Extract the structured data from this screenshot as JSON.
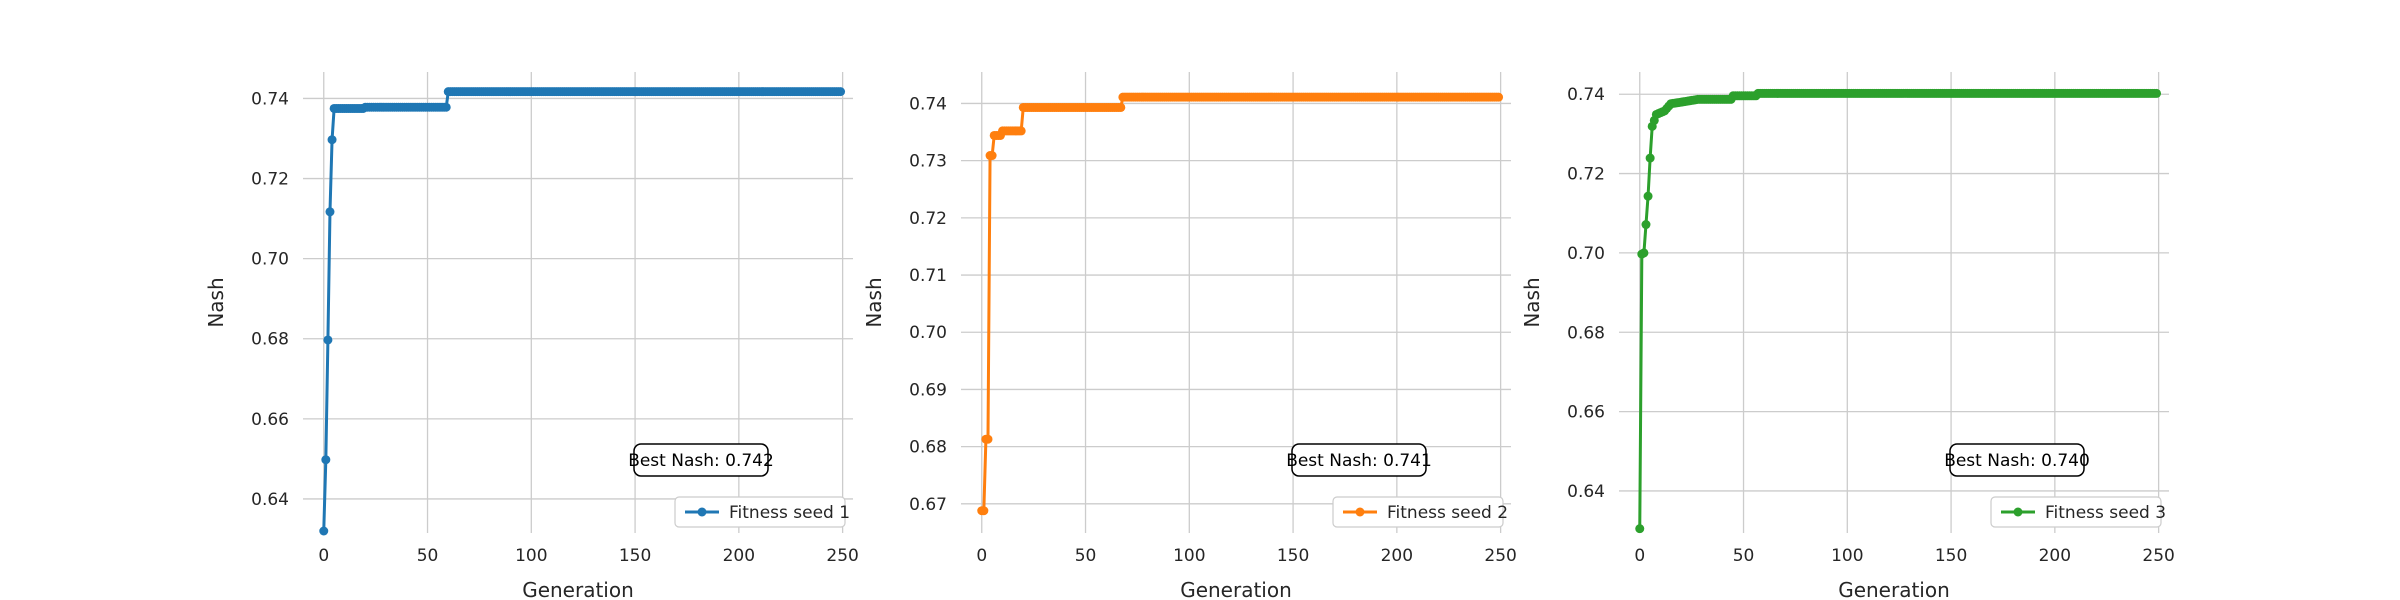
{
  "chart_data": [
    {
      "type": "line",
      "xlabel": "Generation",
      "ylabel": "Nash",
      "xlim": [
        -10,
        255
      ],
      "ylim": [
        0.6315,
        0.7466
      ],
      "xticks": [
        0,
        50,
        100,
        150,
        200,
        250
      ],
      "yticks": [
        0.64,
        0.66,
        0.68,
        0.7,
        0.72,
        0.74
      ],
      "ytick_labels": [
        "0.64",
        "0.66",
        "0.68",
        "0.70",
        "0.72",
        "0.74"
      ],
      "grid": true,
      "legend_position": "bottom-right",
      "annotation": "Best Nash: 0.742",
      "series": [
        {
          "name": "Fitness seed 1",
          "color": "#1f77b4",
          "x": [
            0,
            1,
            2,
            3,
            4,
            5,
            20,
            59,
            60,
            249
          ],
          "y": [
            0.632,
            0.6498,
            0.6797,
            0.7117,
            0.7297,
            0.7375,
            0.7378,
            0.7378,
            0.7417,
            0.7417
          ]
        }
      ]
    },
    {
      "type": "line",
      "xlabel": "Generation",
      "ylabel": "Nash",
      "xlim": [
        -10,
        255
      ],
      "ylim": [
        0.6649,
        0.7455
      ],
      "xticks": [
        0,
        50,
        100,
        150,
        200,
        250
      ],
      "yticks": [
        0.67,
        0.68,
        0.69,
        0.7,
        0.71,
        0.72,
        0.73,
        0.74
      ],
      "ytick_labels": [
        "0.67",
        "0.68",
        "0.69",
        "0.70",
        "0.71",
        "0.72",
        "0.73",
        "0.74"
      ],
      "grid": true,
      "legend_position": "bottom-right",
      "annotation": "Best Nash: 0.741",
      "series": [
        {
          "name": "Fitness seed 2",
          "color": "#ff7f0e",
          "x": [
            0,
            2,
            4,
            6,
            10,
            19,
            20,
            67,
            68,
            249
          ],
          "y": [
            0.6688,
            0.6813,
            0.7309,
            0.7344,
            0.7352,
            0.7352,
            0.7393,
            0.7393,
            0.7411,
            0.7411
          ]
        }
      ]
    },
    {
      "type": "line",
      "xlabel": "Generation",
      "ylabel": "Nash",
      "xlim": [
        -10,
        255
      ],
      "ylim": [
        0.6294,
        0.7456
      ],
      "xticks": [
        0,
        50,
        100,
        150,
        200,
        250
      ],
      "yticks": [
        0.64,
        0.66,
        0.68,
        0.7,
        0.72,
        0.74
      ],
      "ytick_labels": [
        "0.64",
        "0.66",
        "0.68",
        "0.70",
        "0.72",
        "0.74"
      ],
      "grid": true,
      "legend_position": "bottom-right",
      "annotation": "Best Nash: 0.740",
      "series": [
        {
          "name": "Fitness seed 3",
          "color": "#2ca02c",
          "x": [
            0,
            1,
            2,
            4,
            5,
            6,
            8,
            12,
            15,
            20,
            28,
            45,
            57,
            249
          ],
          "y": [
            0.6305,
            0.6997,
            0.7,
            0.7143,
            0.7239,
            0.7319,
            0.7349,
            0.7358,
            0.7376,
            0.738,
            0.7387,
            0.7396,
            0.7402,
            0.7402
          ]
        }
      ]
    }
  ]
}
